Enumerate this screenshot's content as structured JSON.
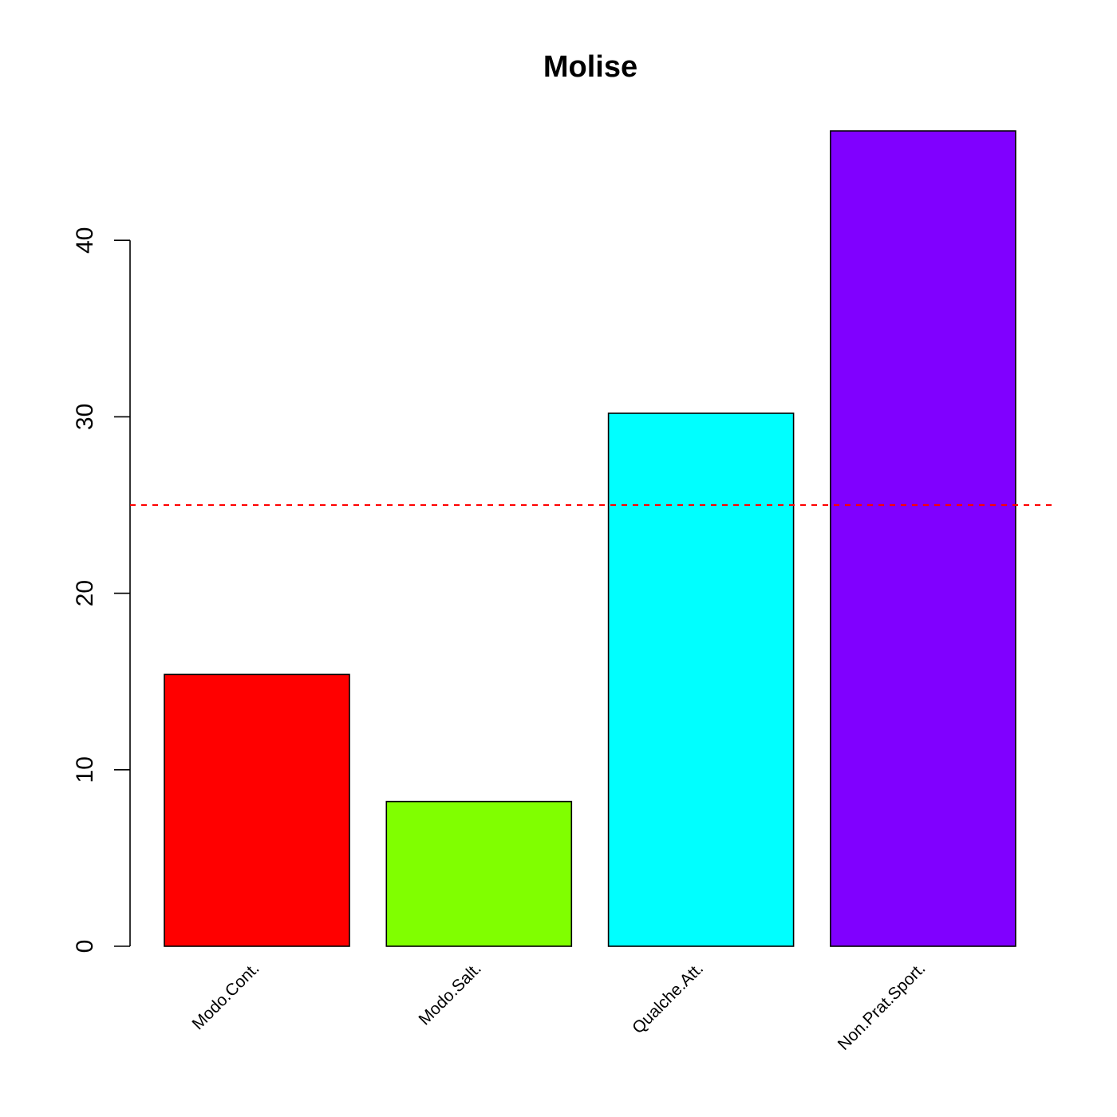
{
  "chart_data": {
    "type": "bar",
    "title": "Molise",
    "xlabel": "",
    "ylabel": "",
    "categories": [
      "Modo.Cont.",
      "Modo.Salt.",
      "Qualche.Att.",
      "Non.Prat.Sport."
    ],
    "values": [
      15.4,
      8.2,
      30.2,
      46.2
    ],
    "colors": [
      "#FF0000",
      "#80FF00",
      "#00FFFF",
      "#8000FF"
    ],
    "ylim": [
      0,
      46.2
    ],
    "yticks": [
      0,
      10,
      20,
      30,
      40
    ],
    "reference_line": {
      "value": 25,
      "color": "#FF0000",
      "style": "dashed"
    },
    "grid": false,
    "legend": "none"
  }
}
